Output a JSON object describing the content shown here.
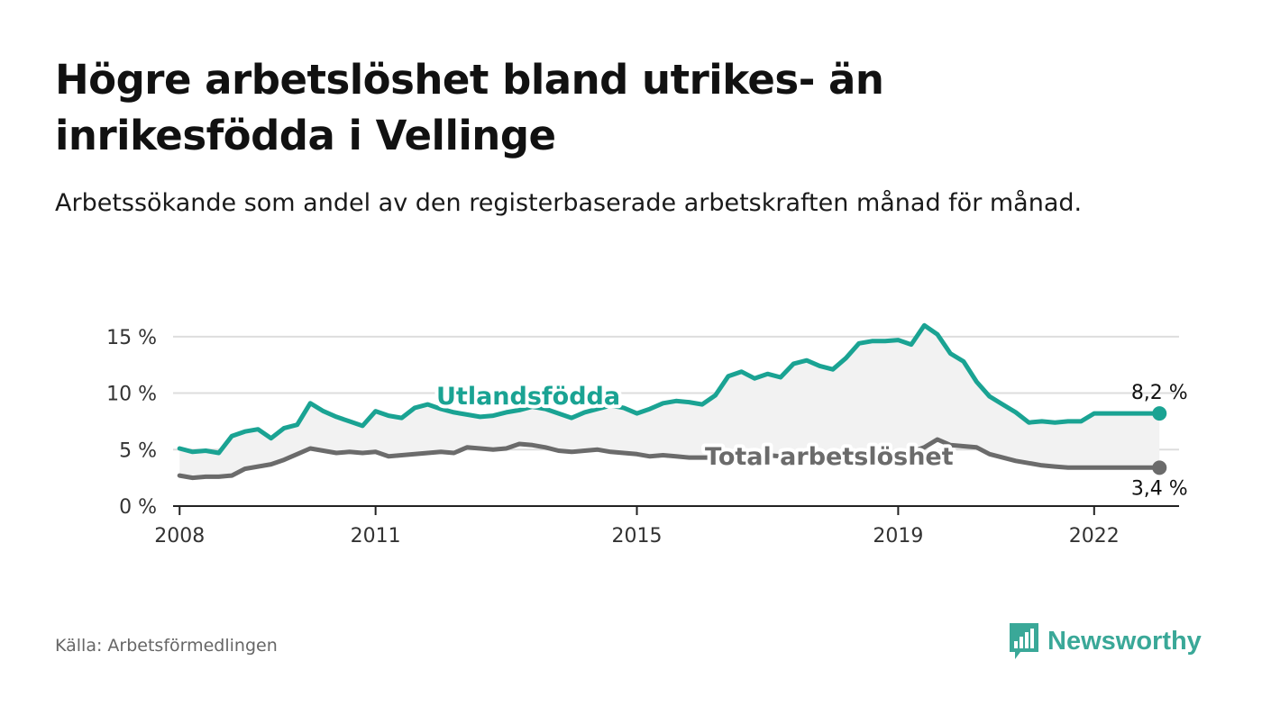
{
  "title": "Högre arbetslöshet bland utrikes- än inrikesfödda i Vellinge",
  "subtitle": "Arbetssökande som andel av den registerbaserade arbetskraften månad för månad.",
  "source": "Källa: Arbetsförmedlingen",
  "brand": {
    "name": "Newsworthy",
    "color": "#3aa898",
    "icon": "bar-chart-logo-icon"
  },
  "chart_data": {
    "type": "line",
    "y_ticks": [
      0,
      5,
      10,
      15
    ],
    "y_tick_labels": [
      "0 %",
      "5 %",
      "10 %",
      "15 %"
    ],
    "ylim": [
      0,
      16.5
    ],
    "xlim": [
      2007.9,
      2023.3
    ],
    "x_ticks": [
      2008,
      2011,
      2015,
      2019,
      2022
    ],
    "x_tick_labels": [
      "2008",
      "2011",
      "2015",
      "2019",
      "2022"
    ],
    "grid": true,
    "series": [
      {
        "name": "Utlandsfödda",
        "color": "#1aa393",
        "end_label": "8,2 %",
        "x": [
          2008.0,
          2008.2,
          2008.4,
          2008.6,
          2008.8,
          2009.0,
          2009.2,
          2009.4,
          2009.6,
          2009.8,
          2010.0,
          2010.2,
          2010.4,
          2010.6,
          2010.8,
          2011.0,
          2011.2,
          2011.4,
          2011.6,
          2011.8,
          2012.0,
          2012.2,
          2012.4,
          2012.6,
          2012.8,
          2013.0,
          2013.2,
          2013.4,
          2013.6,
          2013.8,
          2014.0,
          2014.2,
          2014.4,
          2014.6,
          2014.8,
          2015.0,
          2015.2,
          2015.4,
          2015.6,
          2015.8,
          2016.0,
          2016.2,
          2016.4,
          2016.6,
          2016.8,
          2017.0,
          2017.2,
          2017.4,
          2017.6,
          2017.8,
          2018.0,
          2018.2,
          2018.4,
          2018.6,
          2018.8,
          2019.0,
          2019.2,
          2019.4,
          2019.6,
          2019.8,
          2020.0,
          2020.2,
          2020.4,
          2020.6,
          2020.8,
          2021.0,
          2021.2,
          2021.4,
          2021.6,
          2021.8,
          2022.0,
          2022.2,
          2022.4,
          2022.6,
          2022.8,
          2023.0
        ],
        "values": [
          5.1,
          4.8,
          4.9,
          4.7,
          6.2,
          6.6,
          6.8,
          6.0,
          6.9,
          7.2,
          9.1,
          8.4,
          7.9,
          7.5,
          7.1,
          8.4,
          8.0,
          7.8,
          8.7,
          9.0,
          8.6,
          8.3,
          8.1,
          7.9,
          8.0,
          8.3,
          8.5,
          8.8,
          8.6,
          8.2,
          7.8,
          8.3,
          8.6,
          8.9,
          8.7,
          8.2,
          8.6,
          9.1,
          9.3,
          9.2,
          9.0,
          9.8,
          11.5,
          11.9,
          11.3,
          11.7,
          11.4,
          12.6,
          12.9,
          12.4,
          12.1,
          13.1,
          14.4,
          14.6,
          14.6,
          14.7,
          14.3,
          16.0,
          15.2,
          13.5,
          12.8,
          11.0,
          9.7,
          9.0,
          8.3,
          7.4,
          7.5,
          7.4,
          7.5,
          7.5,
          8.2,
          8.2,
          8.2,
          8.2,
          8.2,
          8.2
        ]
      },
      {
        "name": "Total arbetslöshet",
        "color": "#6b6b6b",
        "end_label": "3,4 %",
        "x": [
          2008.0,
          2008.2,
          2008.4,
          2008.6,
          2008.8,
          2009.0,
          2009.2,
          2009.4,
          2009.6,
          2009.8,
          2010.0,
          2010.2,
          2010.4,
          2010.6,
          2010.8,
          2011.0,
          2011.2,
          2011.4,
          2011.6,
          2011.8,
          2012.0,
          2012.2,
          2012.4,
          2012.6,
          2012.8,
          2013.0,
          2013.2,
          2013.4,
          2013.6,
          2013.8,
          2014.0,
          2014.2,
          2014.4,
          2014.6,
          2014.8,
          2015.0,
          2015.2,
          2015.4,
          2015.6,
          2015.8,
          2016.0,
          2016.2,
          2016.4,
          2016.6,
          2016.8,
          2017.0,
          2017.2,
          2017.4,
          2017.6,
          2017.8,
          2018.0,
          2018.2,
          2018.4,
          2018.6,
          2018.8,
          2019.0,
          2019.2,
          2019.4,
          2019.6,
          2019.8,
          2020.0,
          2020.2,
          2020.4,
          2020.6,
          2020.8,
          2021.0,
          2021.2,
          2021.4,
          2021.6,
          2021.8,
          2022.0,
          2022.2,
          2022.4,
          2022.6,
          2022.8,
          2023.0
        ],
        "values": [
          2.7,
          2.5,
          2.6,
          2.6,
          2.7,
          3.3,
          3.5,
          3.7,
          4.1,
          4.6,
          5.1,
          4.9,
          4.7,
          4.8,
          4.7,
          4.8,
          4.4,
          4.5,
          4.6,
          4.7,
          4.8,
          4.7,
          5.2,
          5.1,
          5.0,
          5.1,
          5.5,
          5.4,
          5.2,
          4.9,
          4.8,
          4.9,
          5.0,
          4.8,
          4.7,
          4.6,
          4.4,
          4.5,
          4.4,
          4.3,
          4.3,
          4.3,
          4.4,
          4.5,
          4.6,
          4.5,
          4.4,
          4.6,
          4.7,
          4.5,
          4.4,
          4.5,
          4.7,
          4.8,
          4.5,
          4.4,
          4.8,
          5.2,
          5.9,
          5.4,
          5.3,
          5.2,
          4.6,
          4.3,
          4.0,
          3.8,
          3.6,
          3.5,
          3.4,
          3.4,
          3.4,
          3.4,
          3.4,
          3.4,
          3.4,
          3.4
        ]
      }
    ],
    "labels": {
      "series_a": "Utlandsfödda",
      "series_b": "Total arbetslöshet"
    }
  }
}
